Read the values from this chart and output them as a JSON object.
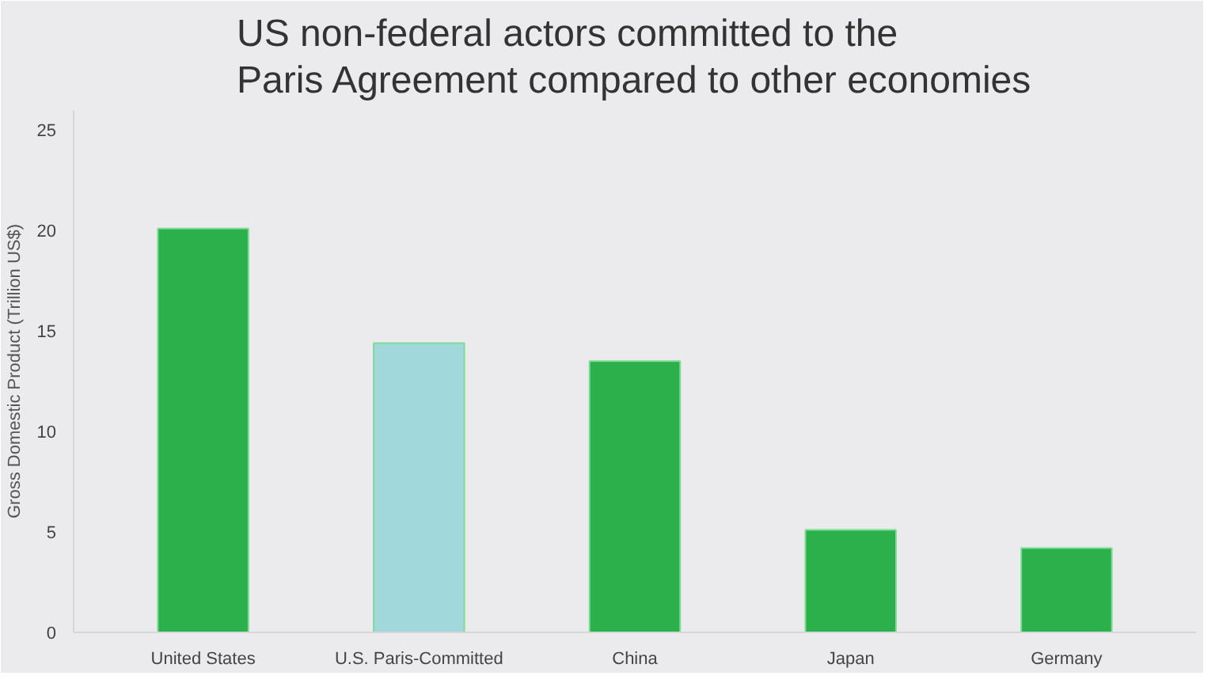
{
  "chart_data": {
    "type": "bar",
    "title": "US non-federal actors committed to the\nParis Agreement compared to other economies",
    "ylabel": "Gross Domestic Product (Trillion US$)",
    "categories": [
      "United States",
      "U.S. Paris-Committed",
      "China",
      "Japan",
      "Germany"
    ],
    "values": [
      20.1,
      14.4,
      13.5,
      5.1,
      4.2
    ],
    "colors": [
      "#2bb04c",
      "#a0d8dc",
      "#2bb04c",
      "#2bb04c",
      "#2bb04c"
    ],
    "ylim": [
      0,
      26
    ],
    "yticks": [
      0,
      5,
      10,
      15,
      20,
      25
    ],
    "grid": false
  }
}
